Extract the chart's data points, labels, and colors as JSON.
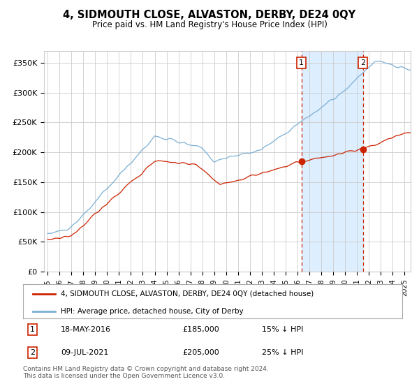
{
  "title": "4, SIDMOUTH CLOSE, ALVASTON, DERBY, DE24 0QY",
  "subtitle": "Price paid vs. HM Land Registry's House Price Index (HPI)",
  "hpi_color": "#7bafd4",
  "price_color": "#cc2200",
  "marker_color": "#cc2200",
  "shade_color": "#ddeeff",
  "legend_label1": "4, SIDMOUTH CLOSE, ALVASTON, DERBY, DE24 0QY (detached house)",
  "legend_label2": "HPI: Average price, detached house, City of Derby",
  "footer": "Contains HM Land Registry data © Crown copyright and database right 2024.\nThis data is licensed under the Open Government Licence v3.0.",
  "marker1_year": 2016.37,
  "marker2_year": 2021.52,
  "marker1_price": 185000,
  "marker2_price": 205000,
  "ylim": [
    0,
    370000
  ],
  "ytick_vals": [
    0,
    50000,
    100000,
    150000,
    200000,
    250000,
    300000,
    350000
  ],
  "ytick_labels": [
    "£0",
    "£50K",
    "£100K",
    "£150K",
    "£200K",
    "£250K",
    "£300K",
    "£350K"
  ],
  "xstart": 1995,
  "xend": 2025
}
